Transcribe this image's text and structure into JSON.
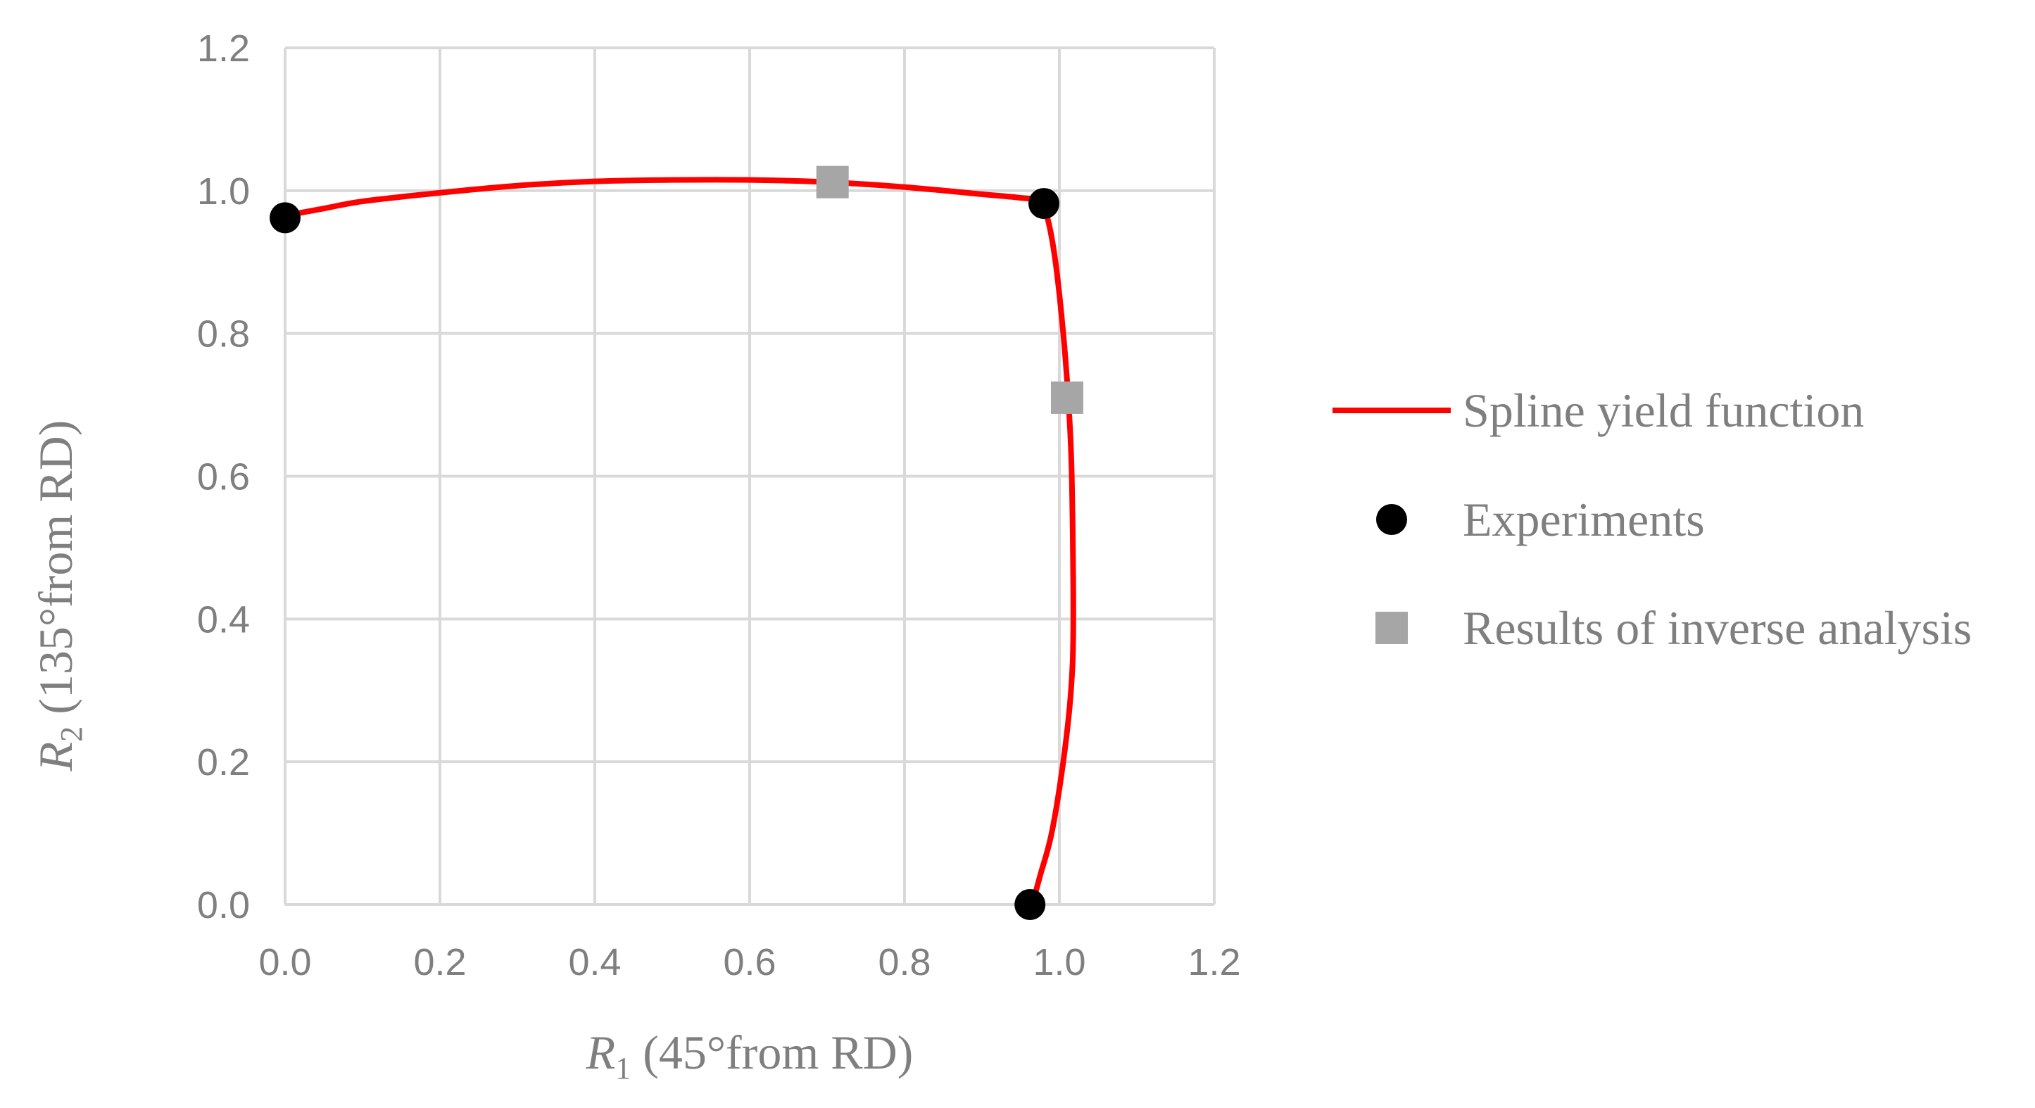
{
  "chart_data": {
    "type": "scatter",
    "title": "",
    "xlabel": {
      "symbol": "R",
      "subscript": "1",
      "rest": " (45°from RD)"
    },
    "ylabel": {
      "symbol": "R",
      "subscript": "2",
      "rest": " (135°from RD)"
    },
    "xlim": [
      0,
      1.2
    ],
    "ylim": [
      0,
      1.2
    ],
    "xticks": [
      "0.0",
      "0.2",
      "0.4",
      "0.6",
      "0.8",
      "1.0",
      "1.2"
    ],
    "yticks": [
      "0.0",
      "0.2",
      "0.4",
      "0.6",
      "0.8",
      "1.0",
      "1.2"
    ],
    "grid": true,
    "legend_position": "right",
    "series": [
      {
        "name": "Spline yield function",
        "kind": "line",
        "color": "#ff0000",
        "x": [
          0.0,
          0.05,
          0.1,
          0.2,
          0.3,
          0.4,
          0.5,
          0.6,
          0.7,
          0.8,
          0.9,
          0.95,
          0.975,
          0.985,
          0.995,
          1.005,
          1.012,
          1.016,
          1.018,
          1.015,
          1.005,
          0.99,
          0.975,
          0.965
        ],
        "y": [
          0.965,
          0.975,
          0.985,
          0.997,
          1.007,
          1.013,
          1.015,
          1.015,
          1.012,
          1.005,
          0.995,
          0.99,
          0.985,
          0.96,
          0.9,
          0.8,
          0.7,
          0.6,
          0.4,
          0.3,
          0.2,
          0.1,
          0.04,
          0.0
        ]
      },
      {
        "name": "Experiments",
        "kind": "marker",
        "marker": "circle",
        "color": "#000000",
        "x": [
          0.0,
          0.98,
          0.962
        ],
        "y": [
          0.962,
          0.982,
          0.0
        ]
      },
      {
        "name": "Results of inverse analysis",
        "kind": "marker",
        "marker": "square",
        "color": "#a6a6a6",
        "x": [
          0.707,
          1.01
        ],
        "y": [
          1.012,
          0.71
        ]
      }
    ]
  }
}
